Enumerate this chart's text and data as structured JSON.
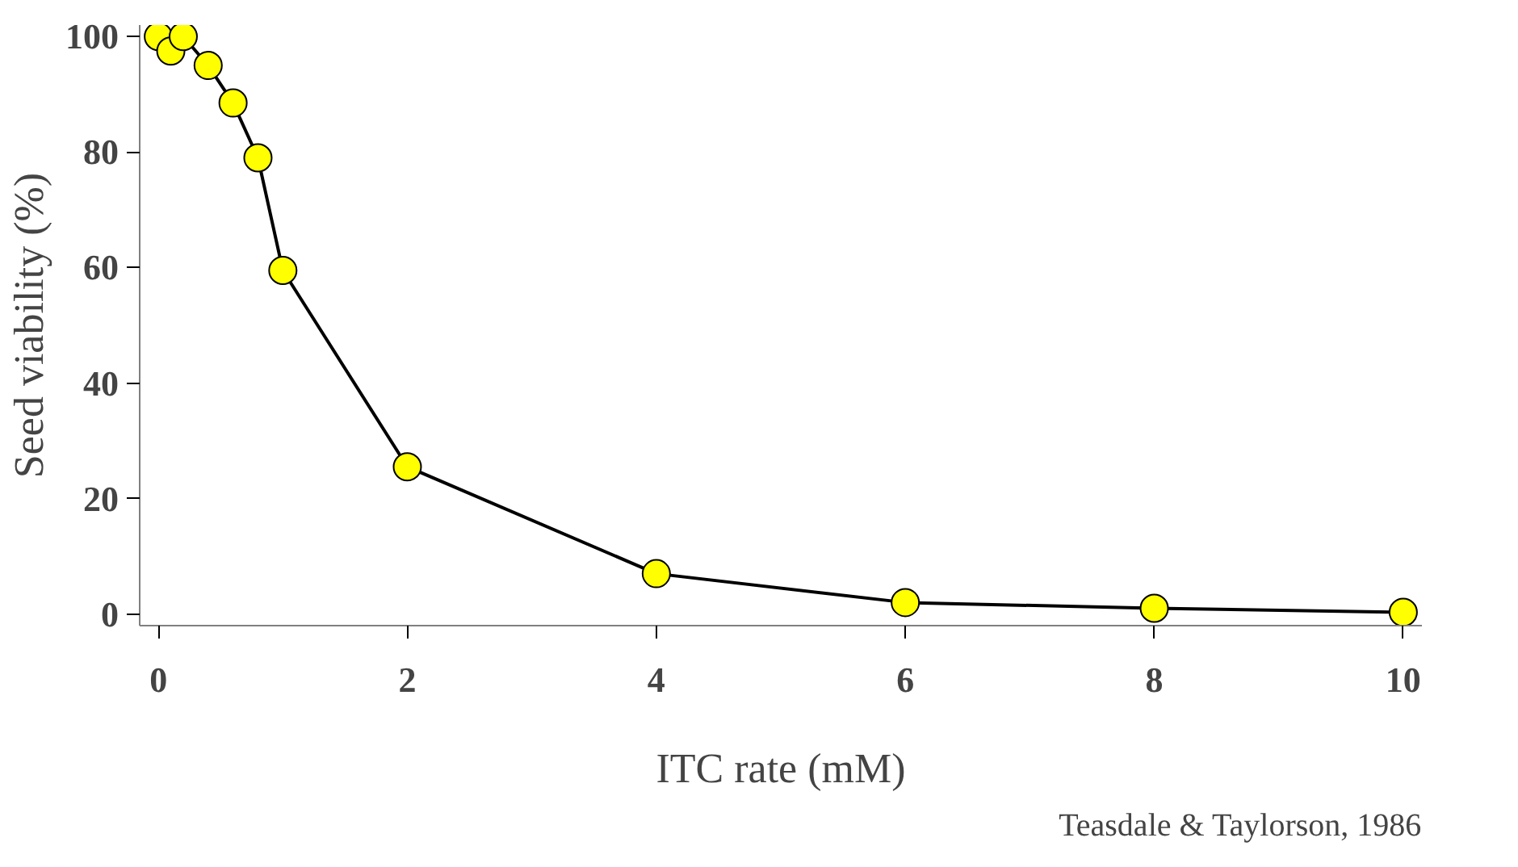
{
  "chart_data": {
    "type": "line",
    "xlabel": "ITC rate (mM)",
    "ylabel": "Seed viability (%)",
    "x": [
      0,
      0.1,
      0.2,
      0.4,
      0.6,
      0.8,
      1.0,
      2,
      4,
      6,
      8,
      10
    ],
    "series": [
      {
        "color": "#ffff00",
        "values": [
          100,
          97.5,
          100,
          95,
          88.5,
          79,
          59.5,
          25.5,
          7,
          2,
          1,
          0.3
        ]
      }
    ],
    "xlim": [
      -0.15,
      10.15
    ],
    "ylim": [
      -2,
      102
    ],
    "xticks": [
      0,
      2,
      4,
      6,
      8,
      10
    ],
    "yticks": [
      0,
      20,
      40,
      60,
      80,
      100
    ],
    "grid": false,
    "marker": "circle",
    "line_style": "solid",
    "annotations": [
      "Teasdale & Taylorson, 1986"
    ]
  }
}
